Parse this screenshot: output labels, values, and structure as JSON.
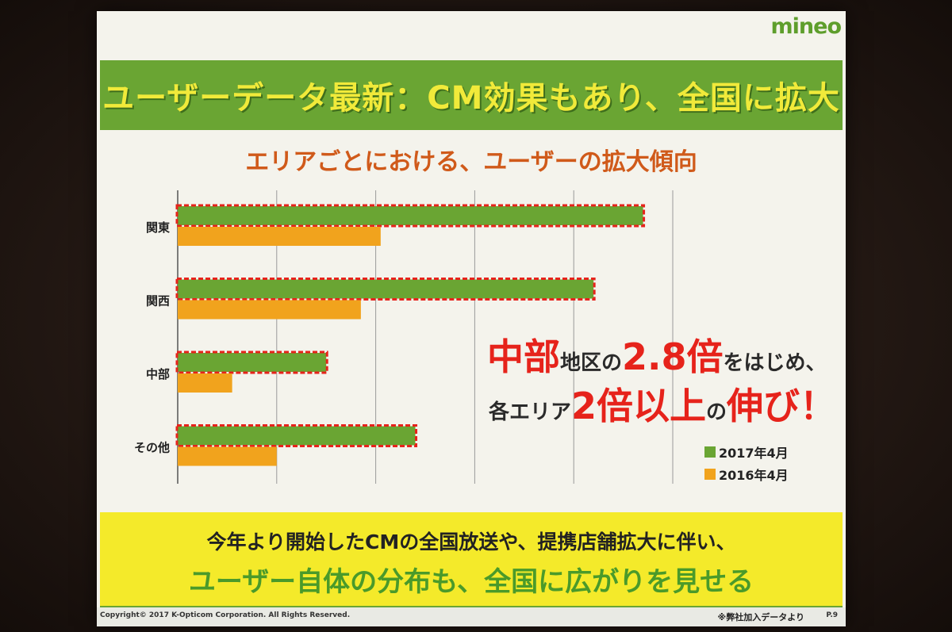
{
  "logo": "mineo",
  "title": "ユーザーデータ最新：CM効果もあり、全国に拡大",
  "colors": {
    "accent_green": "#6aa533",
    "bar_2017": "#6aa533",
    "bar_2016": "#f1a31d",
    "highlight_red": "#e6231b",
    "band_yellow": "#f4ea2a"
  },
  "chart_data": {
    "type": "bar",
    "orientation": "horizontal",
    "title": "エリアごとにおける、ユーザーの拡大傾向",
    "categories": [
      "関東",
      "関西",
      "中部",
      "その他"
    ],
    "series": [
      {
        "name": "2017年4月",
        "values": [
          4.7,
          4.2,
          1.5,
          2.4
        ]
      },
      {
        "name": "2016年4月",
        "values": [
          2.05,
          1.85,
          0.55,
          1.0
        ]
      }
    ],
    "xlim": [
      0,
      5
    ],
    "grid": true,
    "legend_position": "bottom-right"
  },
  "callout": {
    "line1": {
      "a": "中部",
      "b": "地区の",
      "c": "2.8倍",
      "d": "をはじめ、"
    },
    "line2": {
      "a": "各エリア",
      "b": "2倍以上",
      "c": "の",
      "d": "伸び！"
    }
  },
  "bottom": {
    "line1": "今年より開始したCMの全国放送や、提携店舗拡大に伴い、",
    "line2": "ユーザー自体の分布も、全国に広がりを見せる"
  },
  "footer": {
    "copyright": "Copyright© 2017 K-Opticom Corporation. All Rights Reserved.",
    "source": "※弊社加入データより",
    "page": "P.9"
  }
}
